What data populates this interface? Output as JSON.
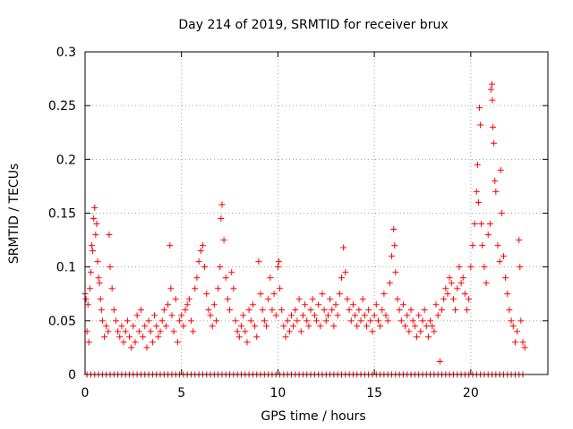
{
  "chart_data": {
    "type": "scatter",
    "title": "Day 214 of 2019, SRMTID for receiver brux",
    "xlabel": "GPS time / hours",
    "ylabel": "SRMTID / TECUs",
    "xlim": [
      0,
      24
    ],
    "ylim": [
      0,
      0.3
    ],
    "grid": true,
    "x_ticks": [
      0,
      5,
      10,
      15,
      20
    ],
    "x_tick_labels": [
      "0",
      "5",
      "10",
      "15",
      "20"
    ],
    "y_ticks": [
      0,
      0.05,
      0.1,
      0.15,
      0.2,
      0.25,
      0.3
    ],
    "y_tick_labels": [
      "0",
      "0.05",
      "0.1",
      "0.15",
      "0.2",
      "0.25",
      "0.3"
    ],
    "marker": "+",
    "color": "#ff0000",
    "series": [
      {
        "name": "SRMTID",
        "points": [
          [
            0.0,
            0.075
          ],
          [
            0.05,
            0.07
          ],
          [
            0.1,
            0.04
          ],
          [
            0.15,
            0.065
          ],
          [
            0.2,
            0.03
          ],
          [
            0.25,
            0.08
          ],
          [
            0.3,
            0.095
          ],
          [
            0.35,
            0.12
          ],
          [
            0.4,
            0.115
          ],
          [
            0.45,
            0.145
          ],
          [
            0.5,
            0.155
          ],
          [
            0.55,
            0.13
          ],
          [
            0.6,
            0.14
          ],
          [
            0.65,
            0.105
          ],
          [
            0.7,
            0.09
          ],
          [
            0.75,
            0.085
          ],
          [
            0.8,
            0.07
          ],
          [
            0.85,
            0.06
          ],
          [
            0.9,
            0.05
          ],
          [
            1.0,
            0.035
          ],
          [
            1.1,
            0.045
          ],
          [
            1.2,
            0.04
          ],
          [
            1.25,
            0.13
          ],
          [
            1.3,
            0.1
          ],
          [
            1.4,
            0.08
          ],
          [
            1.5,
            0.06
          ],
          [
            1.6,
            0.05
          ],
          [
            1.7,
            0.04
          ],
          [
            1.8,
            0.035
          ],
          [
            1.9,
            0.045
          ],
          [
            2.0,
            0.03
          ],
          [
            2.1,
            0.04
          ],
          [
            2.2,
            0.05
          ],
          [
            2.3,
            0.035
          ],
          [
            2.4,
            0.025
          ],
          [
            2.5,
            0.045
          ],
          [
            2.6,
            0.03
          ],
          [
            2.7,
            0.055
          ],
          [
            2.8,
            0.04
          ],
          [
            2.9,
            0.06
          ],
          [
            3.0,
            0.035
          ],
          [
            3.1,
            0.045
          ],
          [
            3.2,
            0.025
          ],
          [
            3.3,
            0.05
          ],
          [
            3.4,
            0.04
          ],
          [
            3.5,
            0.03
          ],
          [
            3.6,
            0.055
          ],
          [
            3.7,
            0.045
          ],
          [
            3.8,
            0.035
          ],
          [
            3.9,
            0.04
          ],
          [
            4.0,
            0.05
          ],
          [
            4.1,
            0.06
          ],
          [
            4.2,
            0.045
          ],
          [
            4.3,
            0.065
          ],
          [
            4.4,
            0.12
          ],
          [
            4.45,
            0.08
          ],
          [
            4.5,
            0.055
          ],
          [
            4.6,
            0.04
          ],
          [
            4.7,
            0.07
          ],
          [
            4.8,
            0.03
          ],
          [
            4.9,
            0.05
          ],
          [
            5.0,
            0.055
          ],
          [
            5.1,
            0.045
          ],
          [
            5.2,
            0.06
          ],
          [
            5.3,
            0.065
          ],
          [
            5.4,
            0.07
          ],
          [
            5.5,
            0.05
          ],
          [
            5.6,
            0.04
          ],
          [
            5.7,
            0.08
          ],
          [
            5.8,
            0.09
          ],
          [
            5.9,
            0.105
          ],
          [
            6.0,
            0.115
          ],
          [
            6.1,
            0.12
          ],
          [
            6.2,
            0.1
          ],
          [
            6.3,
            0.075
          ],
          [
            6.4,
            0.06
          ],
          [
            6.5,
            0.055
          ],
          [
            6.6,
            0.045
          ],
          [
            6.7,
            0.065
          ],
          [
            6.8,
            0.05
          ],
          [
            6.9,
            0.08
          ],
          [
            7.0,
            0.1
          ],
          [
            7.05,
            0.145
          ],
          [
            7.1,
            0.158
          ],
          [
            7.2,
            0.125
          ],
          [
            7.3,
            0.09
          ],
          [
            7.4,
            0.07
          ],
          [
            7.5,
            0.06
          ],
          [
            7.6,
            0.095
          ],
          [
            7.7,
            0.08
          ],
          [
            7.8,
            0.05
          ],
          [
            7.9,
            0.04
          ],
          [
            8.0,
            0.035
          ],
          [
            8.1,
            0.045
          ],
          [
            8.2,
            0.055
          ],
          [
            8.3,
            0.04
          ],
          [
            8.4,
            0.03
          ],
          [
            8.5,
            0.06
          ],
          [
            8.6,
            0.05
          ],
          [
            8.7,
            0.065
          ],
          [
            8.8,
            0.045
          ],
          [
            8.9,
            0.035
          ],
          [
            9.0,
            0.105
          ],
          [
            9.1,
            0.075
          ],
          [
            9.2,
            0.06
          ],
          [
            9.3,
            0.05
          ],
          [
            9.4,
            0.045
          ],
          [
            9.5,
            0.07
          ],
          [
            9.6,
            0.09
          ],
          [
            9.7,
            0.06
          ],
          [
            9.8,
            0.075
          ],
          [
            9.9,
            0.055
          ],
          [
            10.0,
            0.1
          ],
          [
            10.05,
            0.105
          ],
          [
            10.1,
            0.08
          ],
          [
            10.2,
            0.06
          ],
          [
            10.3,
            0.045
          ],
          [
            10.4,
            0.035
          ],
          [
            10.5,
            0.05
          ],
          [
            10.6,
            0.04
          ],
          [
            10.7,
            0.055
          ],
          [
            10.8,
            0.045
          ],
          [
            10.9,
            0.06
          ],
          [
            11.0,
            0.05
          ],
          [
            11.1,
            0.07
          ],
          [
            11.2,
            0.04
          ],
          [
            11.3,
            0.055
          ],
          [
            11.4,
            0.065
          ],
          [
            11.5,
            0.05
          ],
          [
            11.6,
            0.045
          ],
          [
            11.7,
            0.06
          ],
          [
            11.8,
            0.07
          ],
          [
            11.9,
            0.055
          ],
          [
            12.0,
            0.05
          ],
          [
            12.1,
            0.065
          ],
          [
            12.2,
            0.045
          ],
          [
            12.3,
            0.075
          ],
          [
            12.4,
            0.06
          ],
          [
            12.5,
            0.05
          ],
          [
            12.6,
            0.055
          ],
          [
            12.7,
            0.07
          ],
          [
            12.8,
            0.06
          ],
          [
            12.9,
            0.045
          ],
          [
            13.0,
            0.065
          ],
          [
            13.1,
            0.055
          ],
          [
            13.2,
            0.075
          ],
          [
            13.3,
            0.09
          ],
          [
            13.4,
            0.118
          ],
          [
            13.5,
            0.095
          ],
          [
            13.6,
            0.07
          ],
          [
            13.7,
            0.06
          ],
          [
            13.8,
            0.05
          ],
          [
            13.9,
            0.065
          ],
          [
            14.0,
            0.055
          ],
          [
            14.1,
            0.045
          ],
          [
            14.2,
            0.06
          ],
          [
            14.3,
            0.05
          ],
          [
            14.4,
            0.07
          ],
          [
            14.5,
            0.055
          ],
          [
            14.6,
            0.045
          ],
          [
            14.7,
            0.06
          ],
          [
            14.8,
            0.05
          ],
          [
            14.9,
            0.04
          ],
          [
            15.0,
            0.055
          ],
          [
            15.1,
            0.065
          ],
          [
            15.2,
            0.05
          ],
          [
            15.3,
            0.045
          ],
          [
            15.4,
            0.06
          ],
          [
            15.5,
            0.075
          ],
          [
            15.6,
            0.055
          ],
          [
            15.7,
            0.05
          ],
          [
            15.8,
            0.085
          ],
          [
            15.9,
            0.11
          ],
          [
            16.0,
            0.135
          ],
          [
            16.05,
            0.12
          ],
          [
            16.1,
            0.095
          ],
          [
            16.2,
            0.07
          ],
          [
            16.3,
            0.06
          ],
          [
            16.4,
            0.05
          ],
          [
            16.5,
            0.065
          ],
          [
            16.6,
            0.045
          ],
          [
            16.7,
            0.055
          ],
          [
            16.8,
            0.04
          ],
          [
            16.9,
            0.06
          ],
          [
            17.0,
            0.05
          ],
          [
            17.1,
            0.045
          ],
          [
            17.2,
            0.035
          ],
          [
            17.3,
            0.055
          ],
          [
            17.4,
            0.04
          ],
          [
            17.5,
            0.05
          ],
          [
            17.6,
            0.06
          ],
          [
            17.7,
            0.045
          ],
          [
            17.8,
            0.035
          ],
          [
            17.9,
            0.05
          ],
          [
            18.0,
            0.045
          ],
          [
            18.1,
            0.04
          ],
          [
            18.2,
            0.065
          ],
          [
            18.3,
            0.055
          ],
          [
            18.4,
            0.012
          ],
          [
            18.5,
            0.06
          ],
          [
            18.6,
            0.07
          ],
          [
            18.7,
            0.08
          ],
          [
            18.8,
            0.075
          ],
          [
            18.9,
            0.09
          ],
          [
            19.0,
            0.085
          ],
          [
            19.1,
            0.07
          ],
          [
            19.2,
            0.06
          ],
          [
            19.3,
            0.08
          ],
          [
            19.4,
            0.1
          ],
          [
            19.5,
            0.085
          ],
          [
            19.6,
            0.09
          ],
          [
            19.7,
            0.075
          ],
          [
            19.8,
            0.06
          ],
          [
            19.9,
            0.07
          ],
          [
            20.0,
            0.1
          ],
          [
            20.1,
            0.12
          ],
          [
            20.2,
            0.14
          ],
          [
            20.3,
            0.17
          ],
          [
            20.35,
            0.195
          ],
          [
            20.4,
            0.16
          ],
          [
            20.45,
            0.248
          ],
          [
            20.5,
            0.232
          ],
          [
            20.55,
            0.14
          ],
          [
            20.6,
            0.12
          ],
          [
            20.7,
            0.1
          ],
          [
            20.8,
            0.085
          ],
          [
            20.9,
            0.13
          ],
          [
            21.0,
            0.14
          ],
          [
            21.05,
            0.265
          ],
          [
            21.1,
            0.27
          ],
          [
            21.12,
            0.255
          ],
          [
            21.15,
            0.23
          ],
          [
            21.2,
            0.215
          ],
          [
            21.25,
            0.18
          ],
          [
            21.3,
            0.17
          ],
          [
            21.4,
            0.12
          ],
          [
            21.5,
            0.105
          ],
          [
            21.55,
            0.19
          ],
          [
            21.6,
            0.15
          ],
          [
            21.7,
            0.11
          ],
          [
            21.8,
            0.09
          ],
          [
            21.9,
            0.075
          ],
          [
            22.0,
            0.06
          ],
          [
            22.1,
            0.05
          ],
          [
            22.2,
            0.045
          ],
          [
            22.3,
            0.03
          ],
          [
            22.4,
            0.04
          ],
          [
            22.5,
            0.125
          ],
          [
            22.55,
            0.1
          ],
          [
            22.6,
            0.05
          ],
          [
            22.7,
            0.03
          ],
          [
            22.8,
            0.025
          ]
        ]
      }
    ],
    "zero_value_hours": [
      0.1,
      0.3,
      0.5,
      0.7,
      0.9,
      1.1,
      1.3,
      1.5,
      1.7,
      1.9,
      2.1,
      2.3,
      2.5,
      2.7,
      2.9,
      3.1,
      3.3,
      3.5,
      3.7,
      3.9,
      4.1,
      4.3,
      4.5,
      4.7,
      4.9,
      5.1,
      5.3,
      5.5,
      5.7,
      5.9,
      6.1,
      6.3,
      6.5,
      6.7,
      6.9,
      7.1,
      7.3,
      7.5,
      7.7,
      7.9,
      8.1,
      8.3,
      8.5,
      8.7,
      8.9,
      9.1,
      9.3,
      9.5,
      9.7,
      9.9,
      10.1,
      10.3,
      10.5,
      10.7,
      10.9,
      11.1,
      11.3,
      11.5,
      11.7,
      11.9,
      12.1,
      12.3,
      12.5,
      12.7,
      12.9,
      13.1,
      13.3,
      13.5,
      13.7,
      13.9,
      14.1,
      14.3,
      14.5,
      14.7,
      14.9,
      15.1,
      15.3,
      15.5,
      15.7,
      15.9,
      16.1,
      16.3,
      16.5,
      16.7,
      16.9,
      17.1,
      17.3,
      17.5,
      17.7,
      17.9,
      18.1,
      18.3,
      18.5,
      18.7,
      18.9,
      19.1,
      19.3,
      19.5,
      19.7,
      19.9,
      20.1,
      20.3,
      20.5,
      20.7,
      20.9,
      21.1,
      21.3,
      21.5,
      21.7,
      21.9,
      22.1,
      22.3,
      22.5,
      22.7
    ]
  }
}
